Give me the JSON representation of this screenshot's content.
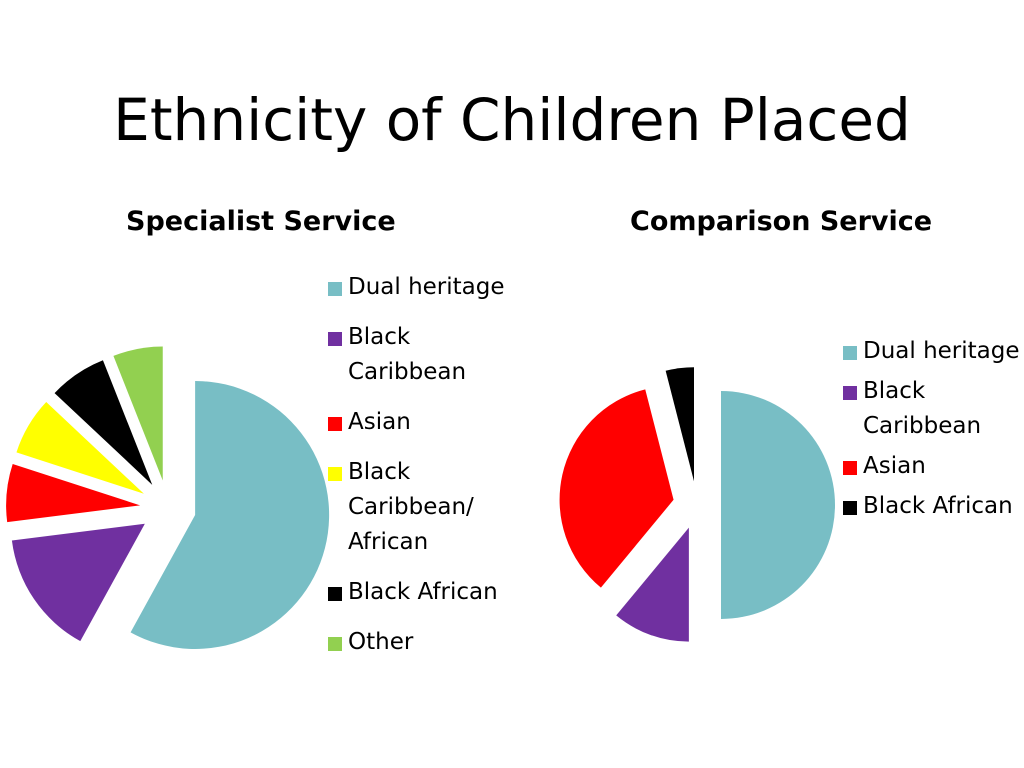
{
  "title": "Ethnicity of Children Placed",
  "colors": {
    "Dual heritage": "#78BEC5",
    "Black Caribbean": "#7030A0",
    "Asian": "#FF0000",
    "Black Caribbean/ African": "#FFFF00",
    "Black African": "#000000",
    "Other": "#92D050"
  },
  "chart_data": [
    {
      "type": "pie",
      "title": "Specialist Service",
      "legend_position": "right",
      "slices": [
        {
          "label": "Dual heritage",
          "value": 58
        },
        {
          "label": "Black Caribbean",
          "value": 15
        },
        {
          "label": "Asian",
          "value": 7
        },
        {
          "label": "Black Caribbean/ African",
          "value": 7
        },
        {
          "label": "Black African",
          "value": 7
        },
        {
          "label": "Other",
          "value": 6
        }
      ]
    },
    {
      "type": "pie",
      "title": "Comparison Service",
      "legend_position": "right",
      "slices": [
        {
          "label": "Dual heritage",
          "value": 50
        },
        {
          "label": "Black Caribbean",
          "value": 11
        },
        {
          "label": "Asian",
          "value": 35
        },
        {
          "label": "Black African",
          "value": 4
        }
      ]
    }
  ]
}
